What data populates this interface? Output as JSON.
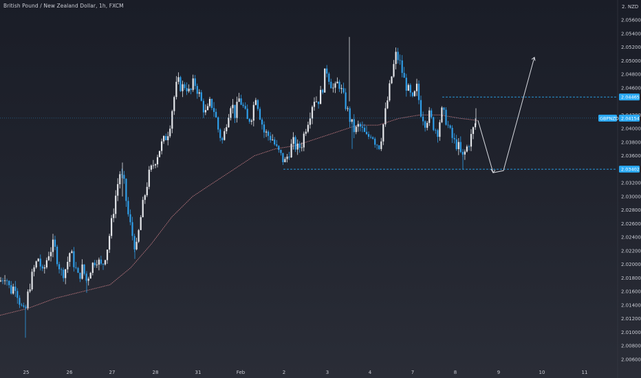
{
  "header": {
    "title": "British Pound / New Zealand Dollar, 1h, FXCM"
  },
  "colors": {
    "up": "#e4e6ea",
    "down": "#2f9fea",
    "ma": "#b5737a",
    "level": "#2aa9f4",
    "price_line": "#2aa9f4",
    "axis_text": "#c9cbd3",
    "arrow": "#d8dae0"
  },
  "chart_data": {
    "type": "candlestick",
    "title": "British Pound / New Zealand Dollar, 1h, FXCM",
    "symbol": "GBPNZD",
    "y_axis": {
      "currency": "NZD",
      "range": [
        2.0055,
        2.058
      ],
      "ticks": [
        "2.05600",
        "2.05400",
        "2.05200",
        "2.05000",
        "2.04800",
        "2.04600",
        "2.04200",
        "2.04000",
        "2.03800",
        "2.03600",
        "2.03200",
        "2.03000",
        "2.02800",
        "2.02600",
        "2.02400",
        "2.02200",
        "2.02000",
        "2.01800",
        "2.01600",
        "2.01400",
        "2.01200",
        "2.01000",
        "2.00800",
        "2.00600"
      ]
    },
    "x_axis": {
      "ticks": [
        "25",
        "26",
        "27",
        "28",
        "31",
        "Feb",
        "2",
        "3",
        "4",
        "7",
        "8",
        "9",
        "10",
        "11"
      ]
    },
    "current_price": {
      "label": "GBPNZD",
      "value": "2.04154"
    },
    "levels": [
      {
        "value": "2.04465",
        "style": "dashed"
      },
      {
        "value": "2.03402",
        "style": "dashed"
      }
    ],
    "price_path": [
      [
        0,
        2.0175
      ],
      [
        8,
        2.0185
      ],
      [
        15,
        2.016
      ],
      [
        22,
        2.017
      ],
      [
        30,
        2.014
      ],
      [
        36,
        2.0125
      ],
      [
        42,
        2.0165
      ],
      [
        50,
        2.0195
      ],
      [
        56,
        2.021
      ],
      [
        62,
        2.0185
      ],
      [
        70,
        2.0215
      ],
      [
        78,
        2.023
      ],
      [
        84,
        2.0205
      ],
      [
        90,
        2.0185
      ],
      [
        96,
        2.0195
      ],
      [
        102,
        2.022
      ],
      [
        108,
        2.02
      ],
      [
        114,
        2.018
      ],
      [
        120,
        2.0195
      ],
      [
        126,
        2.0175
      ],
      [
        132,
        2.0195
      ],
      [
        140,
        2.021
      ],
      [
        148,
        2.0195
      ],
      [
        156,
        2.0225
      ],
      [
        162,
        2.026
      ],
      [
        168,
        2.03
      ],
      [
        174,
        2.0335
      ],
      [
        180,
        2.032
      ],
      [
        186,
        2.0275
      ],
      [
        192,
        2.0245
      ],
      [
        198,
        2.022
      ],
      [
        204,
        2.0265
      ],
      [
        210,
        2.03
      ],
      [
        216,
        2.033
      ],
      [
        222,
        2.0345
      ],
      [
        228,
        2.036
      ],
      [
        234,
        2.0375
      ],
      [
        240,
        2.0385
      ],
      [
        246,
        2.04
      ],
      [
        252,
        2.044
      ],
      [
        258,
        2.047
      ],
      [
        264,
        2.046
      ],
      [
        270,
        2.0465
      ],
      [
        276,
        2.045
      ],
      [
        282,
        2.047
      ],
      [
        288,
        2.0455
      ],
      [
        294,
        2.0435
      ],
      [
        300,
        2.042
      ],
      [
        306,
        2.044
      ],
      [
        312,
        2.0425
      ],
      [
        318,
        2.0395
      ],
      [
        324,
        2.038
      ],
      [
        330,
        2.0415
      ],
      [
        336,
        2.044
      ],
      [
        342,
        2.042
      ],
      [
        348,
        2.0445
      ],
      [
        354,
        2.043
      ],
      [
        360,
        2.041
      ],
      [
        366,
        2.042
      ],
      [
        372,
        2.045
      ],
      [
        378,
        2.042
      ],
      [
        384,
        2.0395
      ],
      [
        390,
        2.039
      ],
      [
        396,
        2.0385
      ],
      [
        402,
        2.037
      ],
      [
        408,
        2.036
      ],
      [
        414,
        2.035
      ],
      [
        420,
        2.0365
      ],
      [
        426,
        2.038
      ],
      [
        432,
        2.037
      ],
      [
        438,
        2.0375
      ],
      [
        444,
        2.04
      ],
      [
        450,
        2.042
      ],
      [
        456,
        2.0445
      ],
      [
        462,
        2.044
      ],
      [
        468,
        2.0455
      ],
      [
        474,
        2.049
      ],
      [
        480,
        2.047
      ],
      [
        486,
        2.0455
      ],
      [
        492,
        2.047
      ],
      [
        498,
        2.045
      ],
      [
        504,
        2.043
      ],
      [
        510,
        2.041
      ],
      [
        516,
        2.0395
      ],
      [
        522,
        2.0405
      ],
      [
        528,
        2.0395
      ],
      [
        534,
        2.0385
      ],
      [
        540,
        2.0395
      ],
      [
        546,
        2.038
      ],
      [
        552,
        2.0375
      ],
      [
        558,
        2.041
      ],
      [
        564,
        2.0445
      ],
      [
        570,
        2.048
      ],
      [
        576,
        2.051
      ],
      [
        582,
        2.0495
      ],
      [
        588,
        2.047
      ],
      [
        594,
        2.0455
      ],
      [
        600,
        2.044
      ],
      [
        606,
        2.046
      ],
      [
        612,
        2.0425
      ],
      [
        618,
        2.041
      ],
      [
        624,
        2.042
      ],
      [
        630,
        2.0405
      ],
      [
        636,
        2.0395
      ],
      [
        642,
        2.0425
      ],
      [
        648,
        2.0415
      ],
      [
        654,
        2.0395
      ],
      [
        660,
        2.038
      ],
      [
        666,
        2.0375
      ],
      [
        672,
        2.0355
      ],
      [
        678,
        2.037
      ],
      [
        684,
        2.0385
      ],
      [
        690,
        2.0405
      ],
      [
        694,
        2.0415
      ]
    ],
    "ma_path": [
      [
        0,
        2.0125
      ],
      [
        40,
        2.0135
      ],
      [
        80,
        2.015
      ],
      [
        120,
        2.016
      ],
      [
        160,
        2.017
      ],
      [
        190,
        2.0195
      ],
      [
        220,
        2.023
      ],
      [
        250,
        2.027
      ],
      [
        280,
        2.03
      ],
      [
        310,
        2.032
      ],
      [
        340,
        2.034
      ],
      [
        370,
        2.036
      ],
      [
        400,
        2.037
      ],
      [
        430,
        2.0375
      ],
      [
        460,
        2.0385
      ],
      [
        490,
        2.0395
      ],
      [
        520,
        2.0405
      ],
      [
        550,
        2.0405
      ],
      [
        580,
        2.0415
      ],
      [
        610,
        2.042
      ],
      [
        640,
        2.042
      ],
      [
        670,
        2.0415
      ],
      [
        694,
        2.0412
      ]
    ],
    "projection": [
      [
        695,
        2.0412
      ],
      [
        717,
        2.0335
      ],
      [
        732,
        2.0338
      ],
      [
        777,
        2.0505
      ]
    ]
  }
}
